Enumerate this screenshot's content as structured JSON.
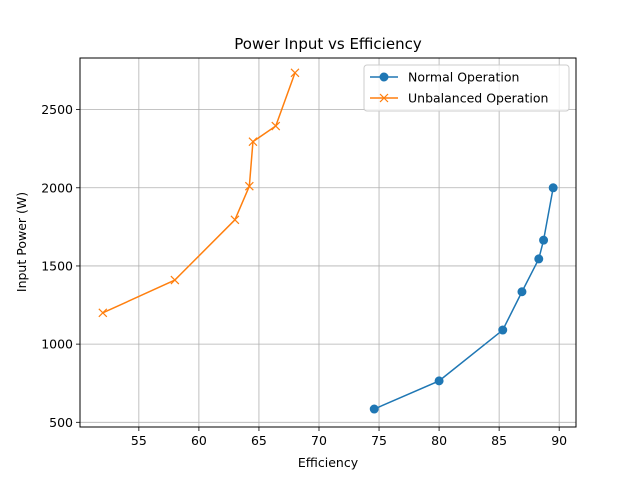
{
  "chart_data": {
    "type": "line",
    "title": "Power Input vs Efficiency",
    "xlabel": "Efficiency",
    "ylabel": "Input Power (W)",
    "xlim": [
      50.1,
      91.4
    ],
    "ylim": [
      470,
      2830
    ],
    "xticks": [
      55,
      60,
      65,
      70,
      75,
      80,
      85,
      90
    ],
    "yticks": [
      500,
      1000,
      1500,
      2000,
      2500
    ],
    "grid": true,
    "legend_position": "upper right",
    "series": [
      {
        "name": "Normal Operation",
        "color": "#1f77b4",
        "marker": "circle",
        "x": [
          74.6,
          80.0,
          85.3,
          86.9,
          88.3,
          88.7,
          89.5
        ],
        "y": [
          585,
          765,
          1090,
          1335,
          1545,
          1665,
          2000
        ]
      },
      {
        "name": "Unbalanced Operation",
        "color": "#ff7f0e",
        "marker": "x",
        "x": [
          52.0,
          58.0,
          63.0,
          64.2,
          64.5,
          66.4,
          68.0
        ],
        "y": [
          1200,
          1410,
          1795,
          2010,
          2295,
          2395,
          2735
        ]
      }
    ]
  }
}
